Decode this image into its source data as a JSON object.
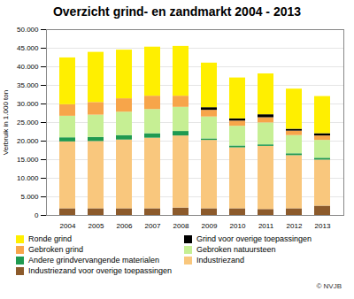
{
  "chart_data": {
    "type": "bar",
    "stacked": true,
    "title": "Overzicht grind- en zandmarkt 2004 - 2013",
    "y_label": "Verbruik in 1.000 ton",
    "annotation": "© NVJB",
    "grid": true,
    "categories": [
      "2004",
      "2005",
      "2006",
      "2007",
      "2008",
      "2009",
      "2010",
      "2011",
      "2012",
      "2013"
    ],
    "ylim": [
      0,
      50000
    ],
    "yticks": [
      0,
      {
        "value": 5000,
        "label": "5.000"
      },
      {
        "value": 10000,
        "label": "10.000"
      },
      {
        "value": 15000,
        "label": "15.000"
      },
      {
        "value": 20000,
        "label": "20.000"
      },
      {
        "value": 25000,
        "label": "25.000"
      },
      {
        "value": 30000,
        "label": "30.000"
      },
      {
        "value": 35000,
        "label": "35.000"
      },
      {
        "value": 40000,
        "label": "40.000"
      },
      {
        "value": 45000,
        "label": "45.000"
      },
      {
        "value": 50000,
        "label": "50.000"
      }
    ],
    "series": [
      {
        "name": "Industriezand voor overige toepassingen",
        "color": "#8c5a2b",
        "values": [
          1800,
          1800,
          1800,
          1800,
          2000,
          1800,
          1800,
          1600,
          1800,
          2500
        ]
      },
      {
        "name": "Industriezand",
        "color": "#f9c77d",
        "values": [
          18000,
          18100,
          18500,
          19000,
          19400,
          18400,
          16400,
          17000,
          14300,
          12400
        ]
      },
      {
        "name": "Andere grindvervangende materialen",
        "color": "#1f9a50",
        "values": [
          1100,
          1100,
          1200,
          1200,
          1200,
          400,
          500,
          400,
          500,
          500
        ]
      },
      {
        "name": "Gebroken natuursteen",
        "color": "#c6ef94",
        "values": [
          5800,
          6000,
          6300,
          6500,
          6500,
          5900,
          5300,
          5900,
          4900,
          4800
        ]
      },
      {
        "name": "Gebroken grind",
        "color": "#f7a54a",
        "values": [
          3100,
          3400,
          3600,
          3600,
          3000,
          1800,
          1400,
          1400,
          1200,
          1200
        ]
      },
      {
        "name": "Grind voor overige toepassingen",
        "color": "#000000",
        "values": [
          0,
          0,
          0,
          0,
          0,
          700,
          600,
          800,
          500,
          600
        ]
      },
      {
        "name": "Ronde grind",
        "color": "#ffef00",
        "values": [
          12600,
          13500,
          13100,
          13200,
          13400,
          12000,
          11000,
          11000,
          10800,
          10000
        ]
      }
    ]
  }
}
